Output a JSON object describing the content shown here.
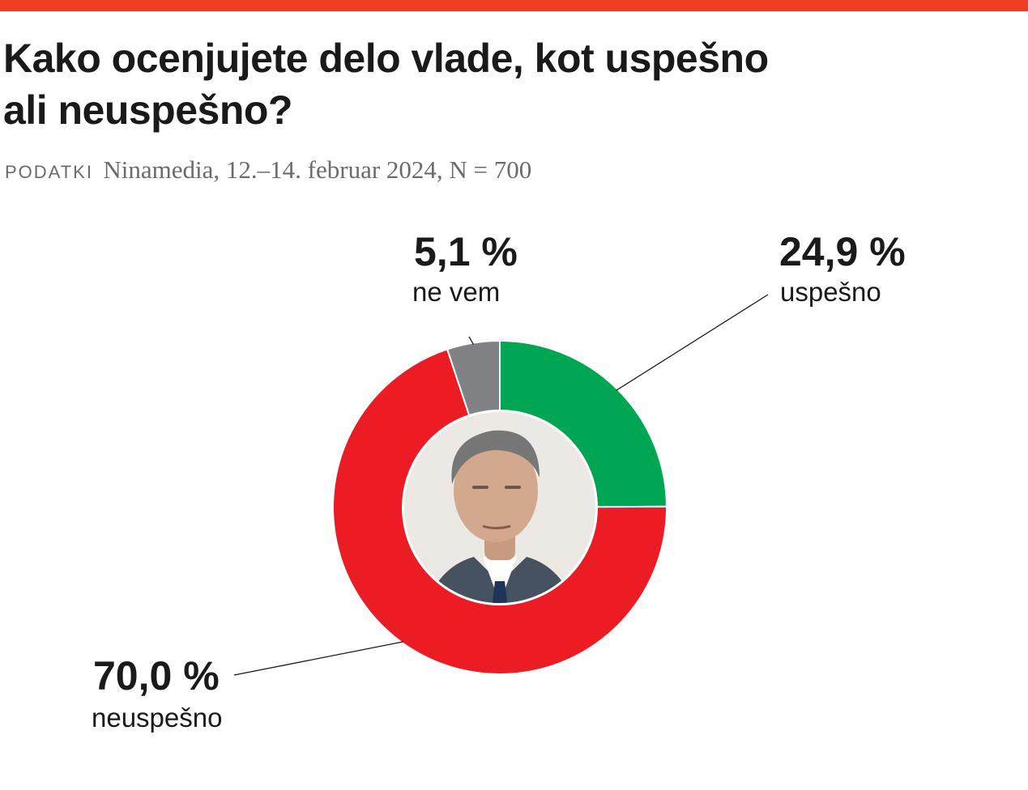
{
  "header": {
    "title_line1": "Kako ocenjujete delo vlade, kot uspešno",
    "title_line2": "ali neuspešno?",
    "source_label": "PODATKI",
    "source_text": "Ninamedia, 12.–14. februar 2024, N = 700"
  },
  "chart_data": {
    "type": "pie",
    "title": "Kako ocenjujete delo vlade, kot uspešno ali neuspešno?",
    "slices": [
      {
        "label": "uspešno",
        "value": 24.9,
        "value_label": "24,9 %",
        "color": "#00a651"
      },
      {
        "label": "neuspešno",
        "value": 70.0,
        "value_label": "70,0 %",
        "color": "#ec1c24"
      },
      {
        "label": "ne vem",
        "value": 5.1,
        "value_label": "5,1 %",
        "color": "#808285"
      }
    ],
    "center_image": "portrait-photo"
  }
}
